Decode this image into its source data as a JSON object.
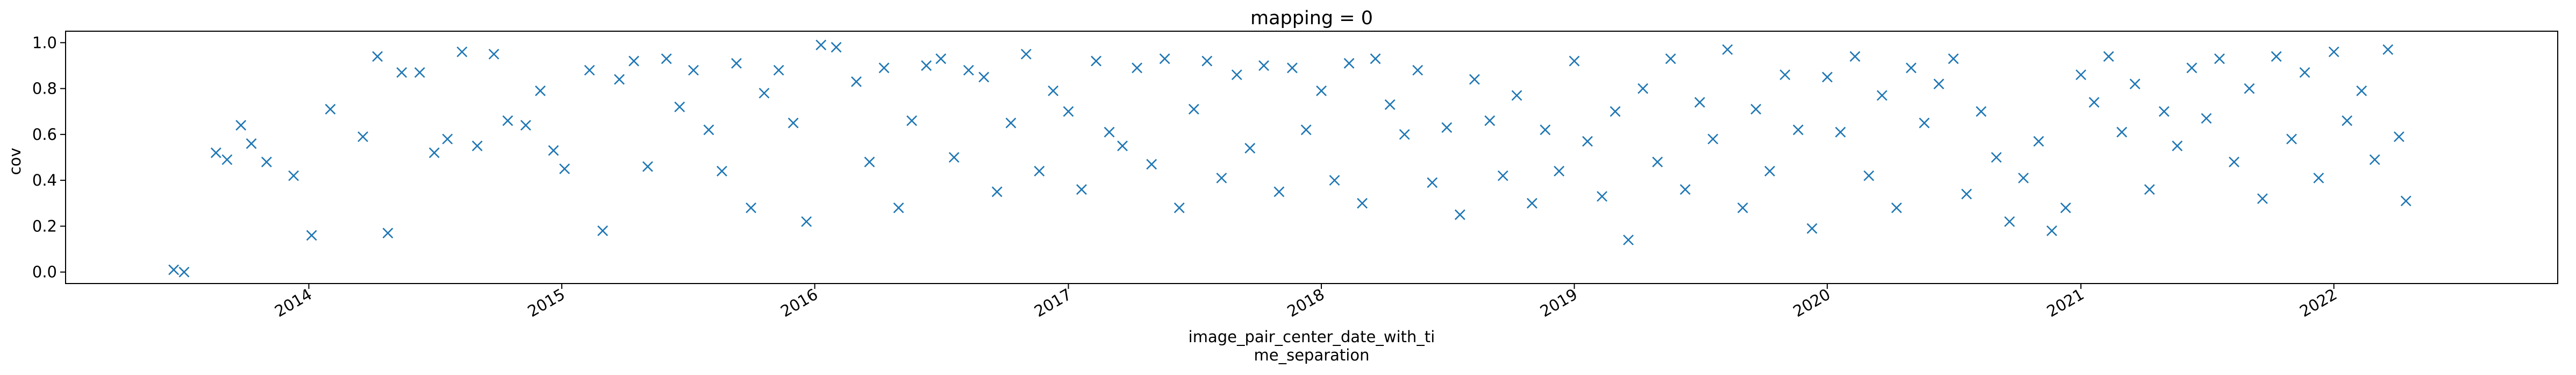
{
  "chart_data": {
    "type": "scatter",
    "title": "mapping = 0",
    "xlabel_lines": [
      "image_pair_center_date_with_ti",
      "me_separation"
    ],
    "ylabel": "cov",
    "x_axis": "date",
    "xlim": [
      "2013-01-15",
      "2022-11-20"
    ],
    "ylim": [
      -0.05,
      1.05
    ],
    "grid": false,
    "legend": "none",
    "marker": "x",
    "color": "#1f77b4",
    "xticks": [
      {
        "value": "2014-01-01",
        "label": "2014"
      },
      {
        "value": "2015-01-01",
        "label": "2015"
      },
      {
        "value": "2016-01-01",
        "label": "2016"
      },
      {
        "value": "2017-01-01",
        "label": "2017"
      },
      {
        "value": "2018-01-01",
        "label": "2018"
      },
      {
        "value": "2019-01-01",
        "label": "2019"
      },
      {
        "value": "2020-01-01",
        "label": "2020"
      },
      {
        "value": "2021-01-01",
        "label": "2021"
      },
      {
        "value": "2022-01-01",
        "label": "2022"
      }
    ],
    "yticks": [
      {
        "value": 0.0,
        "label": "0.0"
      },
      {
        "value": 0.2,
        "label": "0.2"
      },
      {
        "value": 0.4,
        "label": "0.4"
      },
      {
        "value": 0.6,
        "label": "0.6"
      },
      {
        "value": 0.8,
        "label": "0.8"
      },
      {
        "value": 1.0,
        "label": "1.0"
      }
    ],
    "points": [
      [
        "2013-06-20",
        0.01
      ],
      [
        "2013-07-05",
        0.0
      ],
      [
        "2013-08-20",
        0.52
      ],
      [
        "2013-09-05",
        0.49
      ],
      [
        "2013-09-25",
        0.64
      ],
      [
        "2013-10-10",
        0.56
      ],
      [
        "2013-11-01",
        0.48
      ],
      [
        "2013-12-10",
        0.42
      ],
      [
        "2014-01-05",
        0.16
      ],
      [
        "2014-02-01",
        0.71
      ],
      [
        "2014-03-20",
        0.59
      ],
      [
        "2014-04-10",
        0.94
      ],
      [
        "2014-04-25",
        0.17
      ],
      [
        "2014-05-15",
        0.87
      ],
      [
        "2014-06-10",
        0.87
      ],
      [
        "2014-07-01",
        0.52
      ],
      [
        "2014-07-20",
        0.58
      ],
      [
        "2014-08-10",
        0.96
      ],
      [
        "2014-09-01",
        0.55
      ],
      [
        "2014-09-25",
        0.95
      ],
      [
        "2014-10-15",
        0.66
      ],
      [
        "2014-11-10",
        0.64
      ],
      [
        "2014-12-01",
        0.79
      ],
      [
        "2014-12-20",
        0.53
      ],
      [
        "2015-01-05",
        0.45
      ],
      [
        "2015-02-10",
        0.88
      ],
      [
        "2015-03-01",
        0.18
      ],
      [
        "2015-03-25",
        0.84
      ],
      [
        "2015-04-15",
        0.92
      ],
      [
        "2015-05-05",
        0.46
      ],
      [
        "2015-06-01",
        0.93
      ],
      [
        "2015-06-20",
        0.72
      ],
      [
        "2015-07-10",
        0.88
      ],
      [
        "2015-08-01",
        0.62
      ],
      [
        "2015-08-20",
        0.44
      ],
      [
        "2015-09-10",
        0.91
      ],
      [
        "2015-10-01",
        0.28
      ],
      [
        "2015-10-20",
        0.78
      ],
      [
        "2015-11-10",
        0.88
      ],
      [
        "2015-12-01",
        0.65
      ],
      [
        "2015-12-20",
        0.22
      ],
      [
        "2016-01-10",
        0.99
      ],
      [
        "2016-02-01",
        0.98
      ],
      [
        "2016-03-01",
        0.83
      ],
      [
        "2016-03-20",
        0.48
      ],
      [
        "2016-04-10",
        0.89
      ],
      [
        "2016-05-01",
        0.28
      ],
      [
        "2016-05-20",
        0.66
      ],
      [
        "2016-06-10",
        0.9
      ],
      [
        "2016-07-01",
        0.93
      ],
      [
        "2016-07-20",
        0.5
      ],
      [
        "2016-08-10",
        0.88
      ],
      [
        "2016-09-01",
        0.85
      ],
      [
        "2016-09-20",
        0.35
      ],
      [
        "2016-10-10",
        0.65
      ],
      [
        "2016-11-01",
        0.95
      ],
      [
        "2016-11-20",
        0.44
      ],
      [
        "2016-12-10",
        0.79
      ],
      [
        "2017-01-01",
        0.7
      ],
      [
        "2017-01-20",
        0.36
      ],
      [
        "2017-02-10",
        0.92
      ],
      [
        "2017-03-01",
        0.61
      ],
      [
        "2017-03-20",
        0.55
      ],
      [
        "2017-04-10",
        0.89
      ],
      [
        "2017-05-01",
        0.47
      ],
      [
        "2017-05-20",
        0.93
      ],
      [
        "2017-06-10",
        0.28
      ],
      [
        "2017-07-01",
        0.71
      ],
      [
        "2017-07-20",
        0.92
      ],
      [
        "2017-08-10",
        0.41
      ],
      [
        "2017-09-01",
        0.86
      ],
      [
        "2017-09-20",
        0.54
      ],
      [
        "2017-10-10",
        0.9
      ],
      [
        "2017-11-01",
        0.35
      ],
      [
        "2017-11-20",
        0.89
      ],
      [
        "2017-12-10",
        0.62
      ],
      [
        "2018-01-01",
        0.79
      ],
      [
        "2018-01-20",
        0.4
      ],
      [
        "2018-02-10",
        0.91
      ],
      [
        "2018-03-01",
        0.3
      ],
      [
        "2018-03-20",
        0.93
      ],
      [
        "2018-04-10",
        0.73
      ],
      [
        "2018-05-01",
        0.6
      ],
      [
        "2018-05-20",
        0.88
      ],
      [
        "2018-06-10",
        0.39
      ],
      [
        "2018-07-01",
        0.63
      ],
      [
        "2018-07-20",
        0.25
      ],
      [
        "2018-08-10",
        0.84
      ],
      [
        "2018-09-01",
        0.66
      ],
      [
        "2018-09-20",
        0.42
      ],
      [
        "2018-10-10",
        0.77
      ],
      [
        "2018-11-01",
        0.3
      ],
      [
        "2018-11-20",
        0.62
      ],
      [
        "2018-12-10",
        0.44
      ],
      [
        "2019-01-01",
        0.92
      ],
      [
        "2019-01-20",
        0.57
      ],
      [
        "2019-02-10",
        0.33
      ],
      [
        "2019-03-01",
        0.7
      ],
      [
        "2019-03-20",
        0.14
      ],
      [
        "2019-04-10",
        0.8
      ],
      [
        "2019-05-01",
        0.48
      ],
      [
        "2019-05-20",
        0.93
      ],
      [
        "2019-06-10",
        0.36
      ],
      [
        "2019-07-01",
        0.74
      ],
      [
        "2019-07-20",
        0.58
      ],
      [
        "2019-08-10",
        0.97
      ],
      [
        "2019-09-01",
        0.28
      ],
      [
        "2019-09-20",
        0.71
      ],
      [
        "2019-10-10",
        0.44
      ],
      [
        "2019-11-01",
        0.86
      ],
      [
        "2019-11-20",
        0.62
      ],
      [
        "2019-12-10",
        0.19
      ],
      [
        "2020-01-01",
        0.85
      ],
      [
        "2020-01-20",
        0.61
      ],
      [
        "2020-02-10",
        0.94
      ],
      [
        "2020-03-01",
        0.42
      ],
      [
        "2020-03-20",
        0.77
      ],
      [
        "2020-04-10",
        0.28
      ],
      [
        "2020-05-01",
        0.89
      ],
      [
        "2020-05-20",
        0.65
      ],
      [
        "2020-06-10",
        0.82
      ],
      [
        "2020-07-01",
        0.93
      ],
      [
        "2020-07-20",
        0.34
      ],
      [
        "2020-08-10",
        0.7
      ],
      [
        "2020-09-01",
        0.5
      ],
      [
        "2020-09-20",
        0.22
      ],
      [
        "2020-10-10",
        0.41
      ],
      [
        "2020-11-01",
        0.57
      ],
      [
        "2020-11-20",
        0.18
      ],
      [
        "2020-12-10",
        0.28
      ],
      [
        "2021-01-01",
        0.86
      ],
      [
        "2021-01-20",
        0.74
      ],
      [
        "2021-02-10",
        0.94
      ],
      [
        "2021-03-01",
        0.61
      ],
      [
        "2021-03-20",
        0.82
      ],
      [
        "2021-04-10",
        0.36
      ],
      [
        "2021-05-01",
        0.7
      ],
      [
        "2021-05-20",
        0.55
      ],
      [
        "2021-06-10",
        0.89
      ],
      [
        "2021-07-01",
        0.67
      ],
      [
        "2021-07-20",
        0.93
      ],
      [
        "2021-08-10",
        0.48
      ],
      [
        "2021-09-01",
        0.8
      ],
      [
        "2021-09-20",
        0.32
      ],
      [
        "2021-10-10",
        0.94
      ],
      [
        "2021-11-01",
        0.58
      ],
      [
        "2021-11-20",
        0.87
      ],
      [
        "2021-12-10",
        0.41
      ],
      [
        "2022-01-01",
        0.96
      ],
      [
        "2022-01-20",
        0.66
      ],
      [
        "2022-02-10",
        0.79
      ],
      [
        "2022-03-01",
        0.49
      ],
      [
        "2022-03-20",
        0.97
      ],
      [
        "2022-04-05",
        0.59
      ],
      [
        "2022-04-15",
        0.31
      ]
    ]
  }
}
